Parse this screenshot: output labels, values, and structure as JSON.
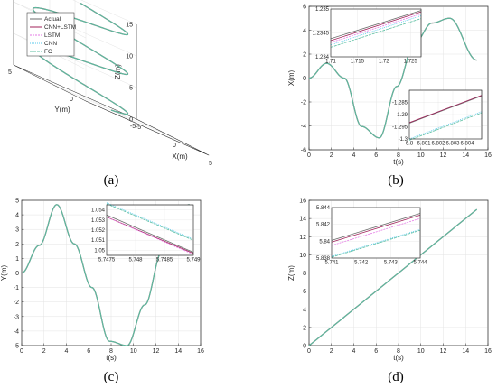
{
  "colors": {
    "actual": "#6b6b6b",
    "cnn_lstm": "#a0225a",
    "lstm": "#e67ae6",
    "cnn": "#58c8ee",
    "fc": "#5cbfa2",
    "axis": "#262626",
    "grid": "#e3e3e3"
  },
  "chart_data": [
    {
      "panel": "a",
      "caption": "(a)",
      "type": "line3d",
      "xlabel": "X(m)",
      "ylabel": "Y(m)",
      "zlabel": "Z(m)",
      "x_ticks": [
        "-5",
        "0",
        "5"
      ],
      "y_ticks": [
        "-5",
        "0",
        "5"
      ],
      "z_ticks": [
        "0",
        "5",
        "10",
        "15"
      ],
      "xlim": [
        -5,
        5
      ],
      "ylim": [
        -5,
        5
      ],
      "zlim": [
        0,
        15
      ],
      "curve": "helix x = 5 sin t, y = 5(1 - cos t)/2, z = t, t from 0 to 15",
      "legend": [
        "Actual",
        "CNN+LSTM",
        "LSTM",
        "CNN",
        "FC"
      ],
      "legend_position": "top-left"
    },
    {
      "panel": "b",
      "caption": "(b)",
      "type": "line",
      "xlabel": "t(s)",
      "ylabel": "X(m)",
      "xlim": [
        0,
        16
      ],
      "ylim": [
        -6,
        6
      ],
      "x_ticks": [
        "0",
        "2",
        "4",
        "6",
        "8",
        "10",
        "12",
        "14",
        "16"
      ],
      "y_ticks": [
        "-6",
        "-4",
        "-2",
        "0",
        "2",
        "4",
        "6"
      ],
      "series_points": {
        "t": [
          0,
          1.57,
          3.14,
          4.71,
          6.28,
          7.85,
          9.42,
          11.0,
          12.57,
          15
        ],
        "x": [
          0,
          1.23,
          0,
          -4.05,
          -5,
          -0.7,
          2.9,
          4.6,
          5,
          1.5
        ]
      },
      "insets": [
        {
          "xlim": [
            1.71,
            1.727
          ],
          "ylim": [
            1.234,
            1.235
          ],
          "x_ticks": [
            "1.71",
            "1.715",
            "1.72",
            "1.725"
          ],
          "y_ticks": [
            "1.234",
            "1.2345",
            "1.235"
          ],
          "position": "top-left"
        },
        {
          "xlim": [
            6.8,
            6.805
          ],
          "ylim": [
            -1.3,
            -1.28
          ],
          "x_ticks": [
            "6.8",
            "6.801",
            "6.802",
            "6.803",
            "6.804"
          ],
          "y_ticks": [
            "-1.285",
            "-1.29",
            "-1.295",
            "-1.3"
          ],
          "position": "bottom-right"
        }
      ]
    },
    {
      "panel": "c",
      "caption": "(c)",
      "type": "line",
      "xlabel": "t(s)",
      "ylabel": "Y(m)",
      "xlim": [
        0,
        16
      ],
      "ylim": [
        -5,
        5
      ],
      "x_ticks": [
        "0",
        "2",
        "4",
        "6",
        "8",
        "10",
        "12",
        "14",
        "16"
      ],
      "y_ticks": [
        "-5",
        "-4",
        "-3",
        "-2",
        "-1",
        "0",
        "1",
        "2",
        "3",
        "4",
        "5"
      ],
      "series_points": {
        "t": [
          0,
          1.57,
          3.14,
          4.71,
          6.28,
          7.85,
          9.42,
          11.0,
          12.57,
          15
        ],
        "y": [
          0,
          1.9,
          4.7,
          2.0,
          -1.0,
          -4.7,
          -5,
          -2.2,
          1.5,
          4.7
        ]
      },
      "insets": [
        {
          "xlim": [
            5.7475,
            5.749
          ],
          "ylim": [
            1.0495,
            1.0545
          ],
          "x_ticks": [
            "5.7475",
            "5.748",
            "5.7485",
            "5.749"
          ],
          "y_ticks": [
            "1.054",
            "1.053",
            "1.052",
            "1.051",
            "1.05"
          ],
          "position": "top-right"
        }
      ]
    },
    {
      "panel": "d",
      "caption": "(d)",
      "type": "line",
      "xlabel": "t(s)",
      "ylabel": "Z(m)",
      "xlim": [
        0,
        16
      ],
      "ylim": [
        0,
        16
      ],
      "x_ticks": [
        "0",
        "2",
        "4",
        "6",
        "8",
        "10",
        "12",
        "14",
        "16"
      ],
      "y_ticks": [
        "0",
        "2",
        "4",
        "6",
        "8",
        "10",
        "12",
        "14",
        "16"
      ],
      "series_points": {
        "t": [
          0,
          15
        ],
        "z": [
          0,
          15
        ]
      },
      "insets": [
        {
          "xlim": [
            5.741,
            5.744
          ],
          "ylim": [
            5.838,
            5.844
          ],
          "x_ticks": [
            "5.741",
            "5.742",
            "5.743",
            "5.744"
          ],
          "y_ticks": [
            "5.844",
            "5.842",
            "5.84",
            "5.838"
          ],
          "position": "top-left"
        }
      ]
    }
  ]
}
